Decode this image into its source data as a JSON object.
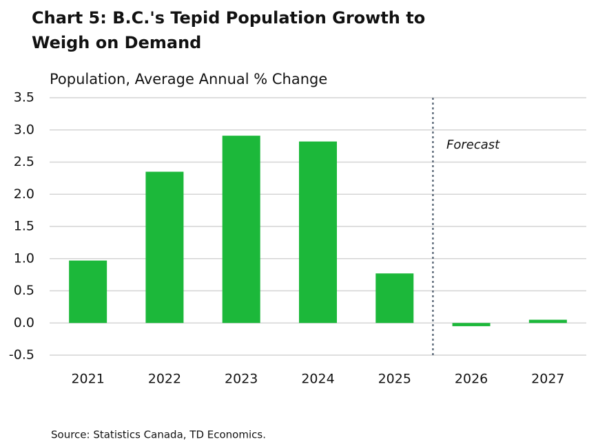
{
  "chart_data": {
    "type": "bar",
    "title_lines": [
      "Chart 5: B.C.'s Tepid Population Growth to",
      "Weigh on Demand"
    ],
    "subtitle": "Population, Average Annual % Change",
    "annotation": "Forecast",
    "source": "Source: Statistics Canada, TD Economics.",
    "categories": [
      "2021",
      "2022",
      "2023",
      "2024",
      "2025",
      "2026",
      "2027"
    ],
    "values": [
      0.97,
      2.35,
      2.91,
      2.82,
      0.77,
      -0.05,
      0.05
    ],
    "color": "#1cb83a",
    "ylim": [
      -0.5,
      3.5
    ],
    "yticks": [
      -0.5,
      {
        "value": 0,
        "label": "0.0"
      },
      0.5,
      {
        "value": 1,
        "label": "1.0"
      },
      1.5,
      {
        "value": 2,
        "label": "2.0"
      },
      2.5,
      {
        "value": 3,
        "label": "3.0"
      },
      3.5
    ],
    "grid": true
  }
}
